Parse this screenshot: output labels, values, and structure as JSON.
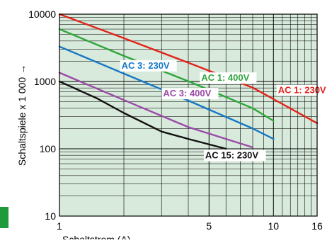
{
  "chart_data": {
    "type": "line",
    "xlabel": "Schaltstrom (A) →",
    "ylabel": "Schaltspiele x 1 000 →",
    "x_scale": "log",
    "y_scale": "log",
    "xlim": [
      1,
      16
    ],
    "ylim": [
      10,
      10000
    ],
    "x_tick_labels": [
      {
        "value": 1,
        "label": "1"
      },
      {
        "value": 5,
        "label": "5"
      },
      {
        "value": 10,
        "label": "10"
      },
      {
        "value": 16,
        "label": "16"
      }
    ],
    "y_tick_labels": [
      {
        "value": 10,
        "label": "10"
      },
      {
        "value": 100,
        "label": "100"
      },
      {
        "value": 1000,
        "label": "1000"
      },
      {
        "value": 10000,
        "label": "10000"
      }
    ],
    "grid": true,
    "background_color": "#d8eadb",
    "series": [
      {
        "name": "AC 1: 230V",
        "color": "#e2231a",
        "x": [
          1,
          2,
          4,
          8,
          16
        ],
        "y": [
          10000,
          4400,
          1900,
          810,
          240
        ]
      },
      {
        "name": "AC 1: 400V",
        "color": "#2ea63a",
        "x": [
          1,
          2,
          4,
          8,
          10
        ],
        "y": [
          6000,
          2400,
          1010,
          400,
          260
        ]
      },
      {
        "name": "AC 3: 230V",
        "color": "#1577c6",
        "x": [
          1,
          2,
          4,
          8,
          10
        ],
        "y": [
          3300,
          1310,
          520,
          200,
          140
        ]
      },
      {
        "name": "AC 3: 400V",
        "color": "#9a4aa6",
        "x": [
          1,
          2,
          4,
          8
        ],
        "y": [
          1350,
          530,
          210,
          105
        ]
      },
      {
        "name": "AC 15: 230V",
        "color": "#111111",
        "x": [
          1,
          1.5,
          2,
          3,
          4,
          6
        ],
        "y": [
          1000,
          560,
          340,
          180,
          140,
          100
        ]
      }
    ],
    "annotations": [
      {
        "text": "AC 3: 230V",
        "color": "#1577c6",
        "x": 1.95,
        "y": 1550
      },
      {
        "text": "AC 1: 400V",
        "color": "#2ea63a",
        "x": 4.6,
        "y": 1020
      },
      {
        "text": "AC 1: 230V",
        "color": "#e2231a",
        "x": 10.5,
        "y": 670
      },
      {
        "text": "AC 3: 400V",
        "color": "#9a4aa6",
        "x": 3.05,
        "y": 600
      },
      {
        "text": "AC 15: 230V",
        "color": "#111111",
        "x": 4.8,
        "y": 72
      }
    ]
  }
}
